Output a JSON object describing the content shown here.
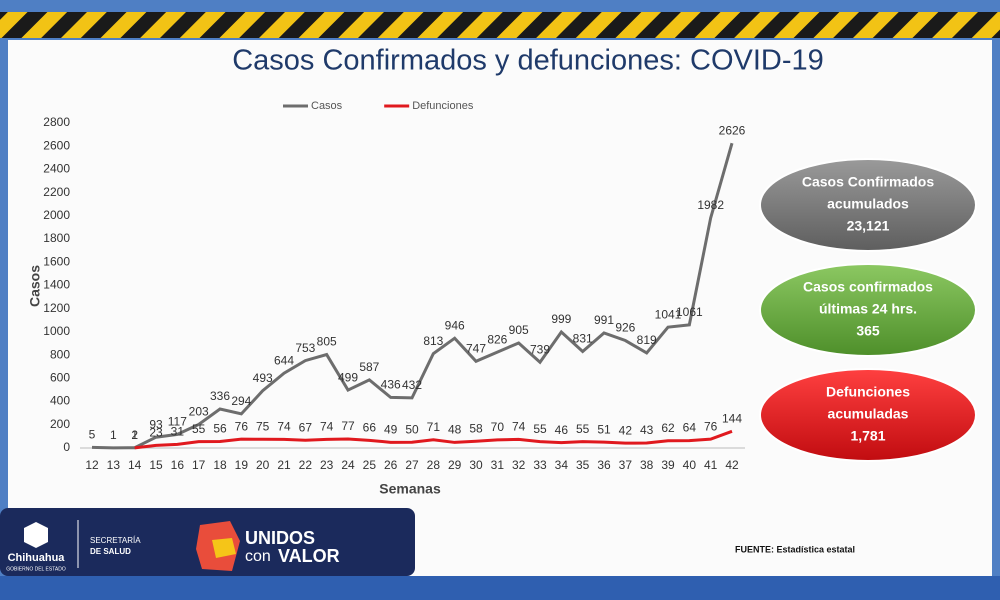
{
  "chart_data": {
    "type": "line",
    "title": "Casos Confirmados y defunciones: COVID-19",
    "x_label": "Semanas",
    "y_label": "Casos",
    "categories": [
      "12",
      "13",
      "14",
      "15",
      "16",
      "17",
      "18",
      "19",
      "20",
      "21",
      "22",
      "23",
      "24",
      "25",
      "26",
      "27",
      "28",
      "29",
      "30",
      "31",
      "32",
      "33",
      "34",
      "35",
      "36",
      "37",
      "38",
      "39",
      "40",
      "41",
      "42"
    ],
    "series": [
      {
        "name": "Casos",
        "color": "#6d6d6d",
        "values": [
          5,
          1,
          2,
          93,
          117,
          203,
          336,
          294,
          493,
          644,
          753,
          805,
          499,
          587,
          436,
          432,
          813,
          946,
          747,
          826,
          905,
          739,
          999,
          831,
          991,
          926,
          819,
          1041,
          1061,
          1982,
          2626
        ]
      },
      {
        "name": "Defunciones",
        "color": "#e0191e",
        "values": [
          null,
          null,
          1,
          23,
          31,
          55,
          56,
          76,
          75,
          74,
          67,
          74,
          77,
          66,
          49,
          50,
          71,
          48,
          58,
          70,
          74,
          55,
          46,
          55,
          51,
          42,
          43,
          62,
          64,
          76,
          144
        ]
      }
    ],
    "ylim": [
      0,
      2800
    ],
    "yticks": [
      0,
      200,
      400,
      600,
      800,
      1000,
      1200,
      1400,
      1600,
      1800,
      2000,
      2200,
      2400,
      2600,
      2800
    ],
    "legend": "top"
  },
  "slide": {
    "bubbles": [
      {
        "lines": [
          "Casos Confirmados",
          "acumulados",
          "23,121"
        ],
        "color": "#7a7a7a"
      },
      {
        "lines": [
          "Casos confirmados",
          "últimas 24 hrs.",
          "365"
        ],
        "color": "#6fac46"
      },
      {
        "lines": [
          "Defunciones",
          "acumuladas",
          "1,781"
        ],
        "color": "#e8181e"
      }
    ],
    "footer": {
      "state": "Chihuahua",
      "state_sub": "GOBIERNO DEL ESTADO",
      "dept": [
        "SECRETARÍA",
        "DE SALUD"
      ],
      "brand": [
        "UNIDOS",
        "con",
        "VALOR"
      ],
      "source": "FUENTE: Estadística estatal"
    }
  }
}
